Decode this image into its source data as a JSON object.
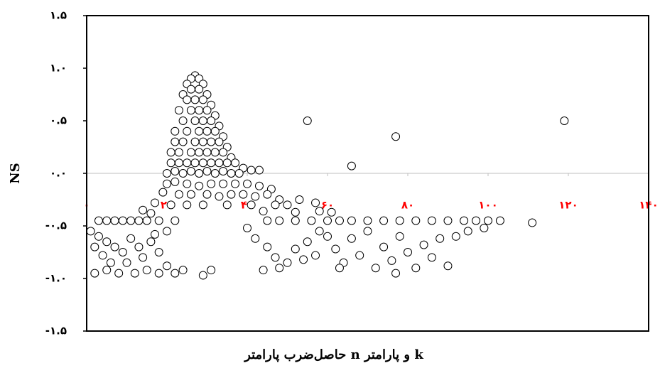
{
  "chart_data": {
    "type": "scatter",
    "xlabel": "حاصل‌ضرب پارامتر n و پارامتر k",
    "ylabel": "NS",
    "marker_fill": "#ffffff",
    "marker_stroke": "#000000",
    "tick_label_color": "#ff0000",
    "zero_line_color": "#bfbfbf",
    "xlim": [
      0,
      140
    ],
    "ylim": [
      -1.5,
      1.5
    ],
    "xticks": [
      {
        "value": 0,
        "label": "۰"
      },
      {
        "value": 20,
        "label": "۲۰"
      },
      {
        "value": 40,
        "label": "۴۰"
      },
      {
        "value": 60,
        "label": "۶۰"
      },
      {
        "value": 80,
        "label": "۸۰"
      },
      {
        "value": 100,
        "label": "۱۰۰"
      },
      {
        "value": 120,
        "label": "۱۲۰"
      },
      {
        "value": 140,
        "label": "۱۴۰"
      }
    ],
    "yticks": [
      {
        "value": 1.5,
        "label": "۱.۵"
      },
      {
        "value": 1.0,
        "label": "۱.۰"
      },
      {
        "value": 0.5,
        "label": "۰.۵"
      },
      {
        "value": 0,
        "label": "۰.۰"
      },
      {
        "value": -0.5,
        "label": "-۰.۵"
      },
      {
        "value": -1.0,
        "label": "-۱.۰"
      },
      {
        "value": -1.5,
        "label": "-۱.۵"
      }
    ],
    "x": [
      27,
      26,
      28,
      25,
      29,
      26,
      28,
      24,
      30,
      25,
      27,
      29,
      31,
      23,
      26,
      28,
      30,
      32,
      24,
      27,
      29,
      31,
      33,
      22,
      25,
      28,
      30,
      32,
      34,
      22,
      24,
      27,
      29,
      31,
      33,
      35,
      21,
      23,
      26,
      28,
      30,
      32,
      34,
      36,
      21,
      23,
      25,
      27,
      29,
      31,
      33,
      35,
      37,
      39,
      41,
      43,
      20,
      22,
      24,
      26,
      28,
      30,
      32,
      34,
      36,
      38,
      20,
      22,
      25,
      28,
      31,
      34,
      37,
      40,
      43,
      46,
      19,
      23,
      26,
      30,
      33,
      36,
      39,
      42,
      45,
      48,
      17,
      21,
      25,
      29,
      35,
      41,
      47,
      50,
      53,
      57,
      14,
      16,
      44,
      52,
      58,
      61,
      3,
      5,
      7,
      9,
      11,
      13,
      15,
      18,
      22,
      45,
      48,
      52,
      56,
      60,
      63,
      66,
      70,
      74,
      78,
      82,
      86,
      90,
      94,
      97,
      100,
      103,
      111,
      1,
      3,
      5,
      2,
      7,
      4,
      9,
      11,
      13,
      6,
      10,
      14,
      16,
      18,
      2,
      5,
      8,
      12,
      15,
      18,
      20,
      22,
      17,
      20,
      40,
      42,
      45,
      47,
      44,
      48,
      50,
      52,
      55,
      54,
      57,
      60,
      62,
      64,
      66,
      68,
      70,
      72,
      74,
      76,
      78,
      80,
      82,
      84,
      86,
      88,
      90,
      58,
      63,
      77,
      92,
      95,
      99,
      55,
      77,
      66,
      119,
      24,
      29,
      31
    ],
    "values": [
      0.93,
      0.9,
      0.9,
      0.85,
      0.85,
      0.8,
      0.8,
      0.75,
      0.75,
      0.7,
      0.7,
      0.7,
      0.65,
      0.6,
      0.6,
      0.6,
      0.6,
      0.55,
      0.5,
      0.5,
      0.5,
      0.5,
      0.45,
      0.4,
      0.4,
      0.4,
      0.4,
      0.4,
      0.35,
      0.3,
      0.3,
      0.3,
      0.3,
      0.3,
      0.3,
      0.25,
      0.2,
      0.2,
      0.2,
      0.2,
      0.2,
      0.2,
      0.2,
      0.15,
      0.1,
      0.1,
      0.1,
      0.1,
      0.1,
      0.1,
      0.1,
      0.1,
      0.1,
      0.05,
      0.03,
      0.03,
      0,
      0.02,
      0,
      0.02,
      0,
      0.02,
      0,
      0.02,
      0,
      0,
      -0.1,
      -0.08,
      -0.1,
      -0.12,
      -0.1,
      -0.1,
      -0.1,
      -0.1,
      -0.12,
      -0.15,
      -0.18,
      -0.2,
      -0.2,
      -0.2,
      -0.22,
      -0.2,
      -0.2,
      -0.22,
      -0.2,
      -0.25,
      -0.28,
      -0.3,
      -0.3,
      -0.3,
      -0.3,
      -0.3,
      -0.3,
      -0.3,
      -0.25,
      -0.28,
      -0.35,
      -0.38,
      -0.36,
      -0.37,
      -0.36,
      -0.37,
      -0.45,
      -0.45,
      -0.45,
      -0.45,
      -0.45,
      -0.45,
      -0.45,
      -0.45,
      -0.45,
      -0.45,
      -0.45,
      -0.45,
      -0.45,
      -0.45,
      -0.45,
      -0.45,
      -0.45,
      -0.45,
      -0.45,
      -0.45,
      -0.45,
      -0.45,
      -0.45,
      -0.45,
      -0.45,
      -0.45,
      -0.47,
      -0.55,
      -0.6,
      -0.65,
      -0.7,
      -0.7,
      -0.78,
      -0.75,
      -0.62,
      -0.7,
      -0.85,
      -0.85,
      -0.8,
      -0.65,
      -0.75,
      -0.95,
      -0.92,
      -0.95,
      -0.95,
      -0.92,
      -0.95,
      -0.88,
      -0.95,
      -0.58,
      -0.55,
      -0.52,
      -0.62,
      -0.7,
      -0.8,
      -0.92,
      -0.9,
      -0.85,
      -0.72,
      -0.65,
      -0.82,
      -0.78,
      -0.6,
      -0.72,
      -0.85,
      -0.62,
      -0.78,
      -0.55,
      -0.9,
      -0.7,
      -0.83,
      -0.6,
      -0.75,
      -0.9,
      -0.68,
      -0.8,
      -0.62,
      -0.88,
      -0.55,
      -0.9,
      -0.95,
      -0.6,
      -0.55,
      -0.52,
      0.5,
      0.35,
      0.07,
      0.5,
      -0.92,
      -0.97,
      -0.92
    ]
  }
}
